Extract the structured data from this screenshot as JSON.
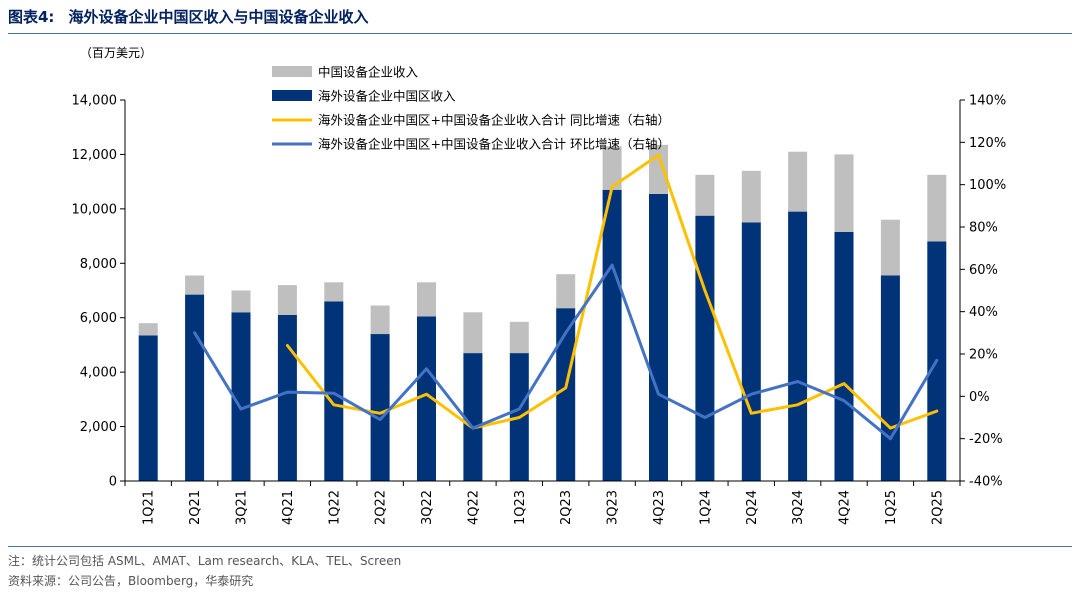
{
  "figure": {
    "label": "图表4:",
    "title": "海外设备企业中国区收入与中国设备企业收入"
  },
  "chart_data": {
    "type": "bar",
    "stacked": true,
    "unit_label": "（百万美元）",
    "categories": [
      "1Q21",
      "2Q21",
      "3Q21",
      "4Q21",
      "1Q22",
      "2Q22",
      "3Q22",
      "4Q22",
      "1Q23",
      "2Q23",
      "3Q23",
      "4Q23",
      "1Q24",
      "2Q24",
      "3Q24",
      "4Q24",
      "1Q25",
      "2Q25"
    ],
    "series": [
      {
        "name": "海外设备企业中国区收入",
        "kind": "bar",
        "axis": "left",
        "color": "#003378",
        "values": [
          5350,
          6850,
          6200,
          6100,
          6600,
          5400,
          6050,
          4700,
          4700,
          6350,
          10700,
          10550,
          9750,
          9500,
          9900,
          9150,
          7550,
          8800
        ]
      },
      {
        "name": "中国设备企业收入",
        "kind": "bar",
        "axis": "left",
        "color": "#bfbfbf",
        "values": [
          450,
          700,
          800,
          1100,
          700,
          1050,
          1250,
          1500,
          1150,
          1250,
          1600,
          1800,
          1500,
          1900,
          2200,
          2850,
          2050,
          2450
        ]
      },
      {
        "name": "海外设备企业中国区+中国设备企业收入合计 同比增速（右轴）",
        "kind": "line",
        "axis": "right",
        "color": "#ffc000",
        "values": [
          null,
          null,
          null,
          24,
          -4,
          -8,
          1,
          -15,
          -10,
          4,
          99,
          114,
          50,
          -8,
          -4,
          6,
          -15,
          -7
        ]
      },
      {
        "name": "海外设备企业中国区+中国设备企业收入合计 环比增速（右轴）",
        "kind": "line",
        "axis": "right",
        "color": "#4472c4",
        "values": [
          null,
          30,
          -6,
          2,
          1.5,
          -11,
          13,
          -15,
          -6,
          30,
          62,
          1,
          -10,
          1,
          7,
          -2,
          -20,
          17
        ]
      }
    ],
    "y_left": {
      "min": 0,
      "max": 14000,
      "ticks": [
        0,
        2000,
        4000,
        6000,
        8000,
        10000,
        12000,
        14000
      ],
      "tick_labels": [
        "0",
        "2,000",
        "4,000",
        "6,000",
        "8,000",
        "10,000",
        "12,000",
        "14,000"
      ]
    },
    "y_right": {
      "min": -40,
      "max": 140,
      "ticks": [
        -40,
        -20,
        0,
        20,
        40,
        60,
        80,
        100,
        120,
        140
      ],
      "tick_labels": [
        "-40%",
        "-20%",
        "0%",
        "20%",
        "40%",
        "60%",
        "80%",
        "100%",
        "120%",
        "140%"
      ]
    },
    "legend_placement": "top-left",
    "grid": false
  },
  "footer": {
    "note": "注：统计公司包括 ASML、AMAT、Lam research、KLA、TEL、Screen",
    "source": "资料来源：公司公告，Bloomberg，华泰研究"
  }
}
